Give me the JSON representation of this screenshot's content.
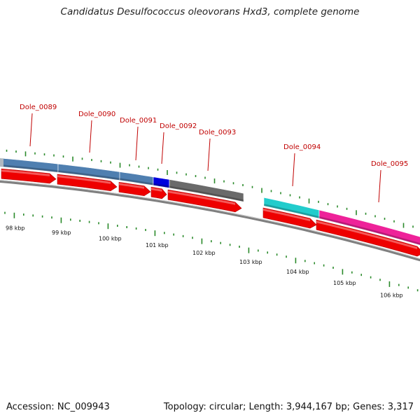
{
  "title": "Candidatus Desulfococcus oleovorans Hxd3, complete genome",
  "footer": {
    "accession": "Accession: NC_009943",
    "topology": "Topology: circular; Length: 3,944,167 bp; Genes: 3,317"
  },
  "colors": {
    "label": "#c00000",
    "tick": "#2a8a2a",
    "backbone": "#888888",
    "cds_arrow": "#ee0000"
  },
  "gene_labels": [
    {
      "name": "Dole_0089"
    },
    {
      "name": "Dole_0090"
    },
    {
      "name": "Dole_0091"
    },
    {
      "name": "Dole_0092"
    },
    {
      "name": "Dole_0093"
    },
    {
      "name": "Dole_0094"
    },
    {
      "name": "Dole_0095"
    }
  ],
  "top_genes": [
    {
      "color": "#b0b8c0"
    },
    {
      "color": "#4f7fb0"
    },
    {
      "color": "#4f7fb0"
    },
    {
      "color": "#0000dd"
    },
    {
      "color": "#6a6a6a"
    },
    {
      "color": "#22cccc"
    },
    {
      "color": "#ee2299"
    },
    {
      "color": "#ee2299"
    }
  ],
  "kbp_ticks": [
    "98 kbp",
    "99 kbp",
    "100 kbp",
    "101 kbp",
    "102 kbp",
    "103 kbp",
    "104 kbp",
    "105 kbp",
    "106 kbp"
  ]
}
